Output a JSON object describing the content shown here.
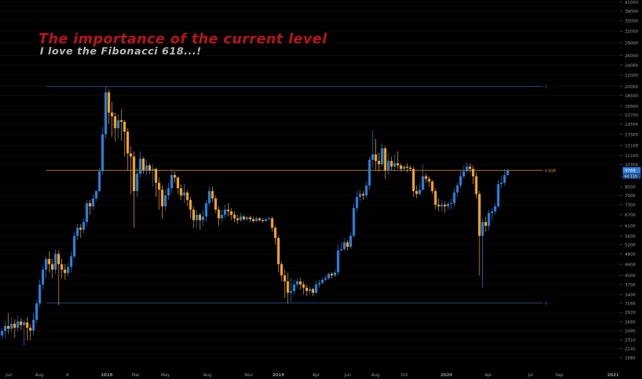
{
  "annotations": {
    "title": "The importance of the current level",
    "subtitle": "I love the Fibonacci 618...!"
  },
  "colors": {
    "background": "#000000",
    "bullish": "#2f7fd9",
    "bearish": "#f5a623",
    "title": "#b5161c",
    "subtitle": "#b9b9b9",
    "fib_line": "#2c4a8a",
    "fib_618_line": "#c98512",
    "axis_text": "#9a9a9a",
    "grid": "#0b0b0b"
  },
  "chart_data": {
    "type": "candlestick",
    "y_scale": "log",
    "ylim": [
      1850,
      41000
    ],
    "y_ticks": [
      "41000",
      "38000",
      "35000",
      "32000",
      "29000",
      "26000",
      "24000",
      "22000",
      "20000",
      "18500",
      "16900",
      "15700",
      "14500",
      "13300",
      "12100",
      "11100",
      "10300",
      "9300",
      "8500",
      "7900",
      "7300",
      "6700",
      "6100",
      "5600",
      "5200",
      "4800",
      "4400",
      "4000",
      "3700",
      "3400",
      "3160",
      "2920",
      "2695",
      "2495",
      "2310",
      "2145",
      "1985"
    ],
    "x_ticks": [
      "Jun",
      "Aug",
      "9",
      "2018",
      "Mar",
      "May",
      "Aug",
      "Nov",
      "2019",
      "Apr",
      "Jun",
      "Aug",
      "Oct",
      "2020",
      "Apr",
      "Jul",
      "Sep",
      "2021"
    ],
    "price_label": "9769",
    "countdown_label": "4d 12h",
    "fib_levels": [
      {
        "label": "1",
        "value": 20000
      },
      {
        "label": "0.618",
        "value": 9780
      },
      {
        "label": "0",
        "value": 3160
      }
    ],
    "candles": [
      [
        2400,
        2490,
        2320,
        2550
      ],
      [
        2490,
        2600,
        2350,
        2710
      ],
      [
        2600,
        2540,
        2430,
        2900
      ],
      [
        2540,
        2650,
        2450,
        2800
      ],
      [
        2650,
        2560,
        2350,
        2750
      ],
      [
        2560,
        2700,
        2480,
        2850
      ],
      [
        2700,
        2620,
        2510,
        2780
      ],
      [
        2620,
        2680,
        2200,
        2750
      ],
      [
        2680,
        2560,
        2300,
        2800
      ],
      [
        2560,
        2500,
        2300,
        2640
      ],
      [
        2500,
        2740,
        2400,
        2900
      ],
      [
        2740,
        3150,
        2650,
        3250
      ],
      [
        3150,
        3700,
        3050,
        3860
      ],
      [
        3700,
        4200,
        3550,
        4370
      ],
      [
        4200,
        4600,
        3900,
        4700
      ],
      [
        4600,
        4400,
        4100,
        4900
      ],
      [
        4400,
        4200,
        3900,
        4600
      ],
      [
        4200,
        4800,
        4050,
        4980
      ],
      [
        4800,
        4400,
        3100,
        4950
      ],
      [
        4400,
        4200,
        3900,
        4600
      ],
      [
        4200,
        4080,
        3850,
        4400
      ],
      [
        4080,
        4300,
        3970,
        4440
      ],
      [
        4300,
        4700,
        4100,
        4900
      ],
      [
        4700,
        5600,
        4600,
        5800
      ],
      [
        5600,
        6000,
        5400,
        6200
      ],
      [
        6000,
        5900,
        5500,
        6200
      ],
      [
        5900,
        6300,
        5700,
        6500
      ],
      [
        6300,
        7400,
        6100,
        7600
      ],
      [
        7400,
        7200,
        6700,
        7600
      ],
      [
        7200,
        7700,
        7000,
        8000
      ],
      [
        7700,
        8200,
        7500,
        8300
      ],
      [
        8200,
        9700,
        8100,
        10000
      ],
      [
        9700,
        13300,
        9400,
        14200
      ],
      [
        13300,
        19000,
        12800,
        20000
      ],
      [
        19000,
        16000,
        14500,
        19500
      ],
      [
        16000,
        15500,
        13000,
        17500
      ],
      [
        15500,
        14000,
        12500,
        16000
      ],
      [
        14000,
        15000,
        12800,
        15800
      ],
      [
        15000,
        14800,
        12600,
        16500
      ],
      [
        14800,
        13600,
        11000,
        15000
      ],
      [
        13600,
        11300,
        9800,
        14000
      ],
      [
        11300,
        11000,
        8000,
        12000
      ],
      [
        11000,
        8200,
        6000,
        11500
      ],
      [
        8200,
        9500,
        7800,
        10000
      ],
      [
        9500,
        10800,
        9200,
        11500
      ],
      [
        10800,
        9800,
        9500,
        11000
      ],
      [
        9800,
        10200,
        9400,
        10700
      ],
      [
        10200,
        9800,
        9500,
        10400
      ],
      [
        9800,
        9900,
        8500,
        10300
      ],
      [
        9900,
        8800,
        7800,
        10000
      ],
      [
        8800,
        8300,
        7000,
        9200
      ],
      [
        8300,
        7200,
        6500,
        8600
      ],
      [
        7200,
        7900,
        6900,
        8300
      ],
      [
        7900,
        8400,
        7600,
        8800
      ],
      [
        8400,
        9400,
        8000,
        9900
      ],
      [
        9400,
        9200,
        8800,
        9700
      ],
      [
        9200,
        8400,
        8000,
        9300
      ],
      [
        8400,
        7900,
        7600,
        8700
      ],
      [
        7900,
        8100,
        7400,
        8700
      ],
      [
        8100,
        7600,
        7200,
        8300
      ],
      [
        7600,
        7000,
        6500,
        7800
      ],
      [
        7000,
        6400,
        6000,
        7200
      ],
      [
        6400,
        6700,
        6000,
        7000
      ],
      [
        6700,
        6400,
        5900,
        6800
      ],
      [
        6400,
        6600,
        6100,
        7000
      ],
      [
        6600,
        7400,
        6300,
        7600
      ],
      [
        7400,
        8200,
        7200,
        8500
      ],
      [
        8200,
        7700,
        7500,
        8500
      ],
      [
        7700,
        7000,
        6800,
        7900
      ],
      [
        7000,
        6500,
        6100,
        7200
      ],
      [
        6500,
        6700,
        6300,
        7000
      ],
      [
        6700,
        7000,
        6500,
        7300
      ],
      [
        7000,
        6900,
        6600,
        7400
      ],
      [
        6900,
        6700,
        6400,
        7100
      ],
      [
        6700,
        6500,
        6300,
        6900
      ],
      [
        6500,
        6400,
        6200,
        6700
      ],
      [
        6400,
        6600,
        6300,
        6800
      ],
      [
        6600,
        6450,
        6350,
        6700
      ],
      [
        6450,
        6550,
        6350,
        6650
      ],
      [
        6550,
        6450,
        6300,
        6650
      ],
      [
        6450,
        6350,
        6250,
        6600
      ],
      [
        6350,
        6500,
        6300,
        6600
      ],
      [
        6500,
        6400,
        6300,
        6560
      ],
      [
        6400,
        6350,
        6250,
        6500
      ],
      [
        6350,
        6450,
        6300,
        6560
      ],
      [
        6450,
        6500,
        6350,
        6600
      ],
      [
        6500,
        6000,
        5800,
        6600
      ],
      [
        6000,
        5500,
        5200,
        6100
      ],
      [
        5500,
        4400,
        4100,
        5600
      ],
      [
        4400,
        4000,
        3800,
        4500
      ],
      [
        4000,
        3800,
        3300,
        4200
      ],
      [
        3800,
        3450,
        3150,
        4100
      ],
      [
        3450,
        3500,
        3200,
        3900
      ],
      [
        3500,
        3700,
        3400,
        3850
      ],
      [
        3700,
        3800,
        3600,
        3900
      ],
      [
        3800,
        3700,
        3550,
        3920
      ],
      [
        3700,
        3600,
        3400,
        3800
      ],
      [
        3600,
        3500,
        3350,
        3700
      ],
      [
        3500,
        3560,
        3400,
        3650
      ],
      [
        3560,
        3450,
        3350,
        3600
      ],
      [
        3450,
        3700,
        3400,
        3820
      ],
      [
        3700,
        3750,
        3600,
        3850
      ],
      [
        3750,
        3850,
        3700,
        3950
      ],
      [
        3850,
        3900,
        3800,
        4000
      ],
      [
        3900,
        4050,
        3850,
        4100
      ],
      [
        4050,
        4000,
        3900,
        4120
      ],
      [
        4000,
        4100,
        3950,
        4200
      ],
      [
        4100,
        4950,
        4000,
        5200
      ],
      [
        4950,
        5000,
        4900,
        5300
      ],
      [
        5000,
        5300,
        4900,
        5500
      ],
      [
        5300,
        5100,
        4950,
        5400
      ],
      [
        5100,
        5600,
        5000,
        5800
      ],
      [
        5600,
        7100,
        5500,
        7400
      ],
      [
        7100,
        7800,
        6900,
        8200
      ],
      [
        7800,
        8000,
        7500,
        8300
      ],
      [
        8000,
        7900,
        7600,
        8200
      ],
      [
        7900,
        8600,
        7700,
        8900
      ],
      [
        8600,
        10700,
        8300,
        11000
      ],
      [
        10700,
        11200,
        10000,
        13800
      ],
      [
        11200,
        10600,
        9800,
        12800
      ],
      [
        10600,
        10300,
        9700,
        11400
      ],
      [
        10300,
        11800,
        10100,
        12300
      ],
      [
        11800,
        9800,
        9100,
        12000
      ],
      [
        9800,
        10600,
        9400,
        11300
      ],
      [
        10600,
        10100,
        9800,
        11000
      ],
      [
        10100,
        10400,
        9700,
        11200
      ],
      [
        10400,
        10200,
        9900,
        11500
      ],
      [
        10200,
        9900,
        9700,
        10400
      ],
      [
        9900,
        10100,
        9700,
        10200
      ],
      [
        10100,
        10000,
        9600,
        10400
      ],
      [
        10000,
        9900,
        9700,
        10200
      ],
      [
        9900,
        8200,
        7800,
        10100
      ],
      [
        8200,
        8000,
        7700,
        8600
      ],
      [
        8000,
        8300,
        7900,
        8800
      ],
      [
        8300,
        9300,
        8200,
        10300
      ],
      [
        9300,
        9100,
        8800,
        9500
      ],
      [
        9100,
        8900,
        8500,
        9300
      ],
      [
        8900,
        8200,
        8000,
        9000
      ],
      [
        8200,
        7300,
        7000,
        8400
      ],
      [
        7300,
        7200,
        6900,
        7700
      ],
      [
        7200,
        7300,
        6900,
        7600
      ],
      [
        7300,
        7200,
        6800,
        7500
      ],
      [
        7200,
        7350,
        7000,
        7500
      ],
      [
        7350,
        7400,
        7000,
        7700
      ],
      [
        7400,
        8100,
        7200,
        8400
      ],
      [
        8100,
        8600,
        7800,
        8800
      ],
      [
        8600,
        9300,
        8400,
        9800
      ],
      [
        9300,
        9700,
        9100,
        10200
      ],
      [
        9700,
        10100,
        9600,
        10500
      ],
      [
        10100,
        9900,
        9600,
        10400
      ],
      [
        9900,
        9300,
        8700,
        10200
      ],
      [
        9300,
        8000,
        7700,
        9600
      ],
      [
        8000,
        5600,
        4000,
        8200
      ],
      [
        5600,
        6300,
        3600,
        6500
      ],
      [
        6300,
        6100,
        5800,
        6600
      ],
      [
        6100,
        6800,
        5900,
        7000
      ],
      [
        6800,
        6900,
        6400,
        7100
      ],
      [
        6900,
        7200,
        6700,
        7400
      ],
      [
        7200,
        8700,
        7100,
        9000
      ],
      [
        8700,
        8800,
        8400,
        9300
      ],
      [
        8800,
        9400,
        8600,
        9900
      ],
      [
        9400,
        9769,
        9300,
        9950
      ]
    ]
  }
}
